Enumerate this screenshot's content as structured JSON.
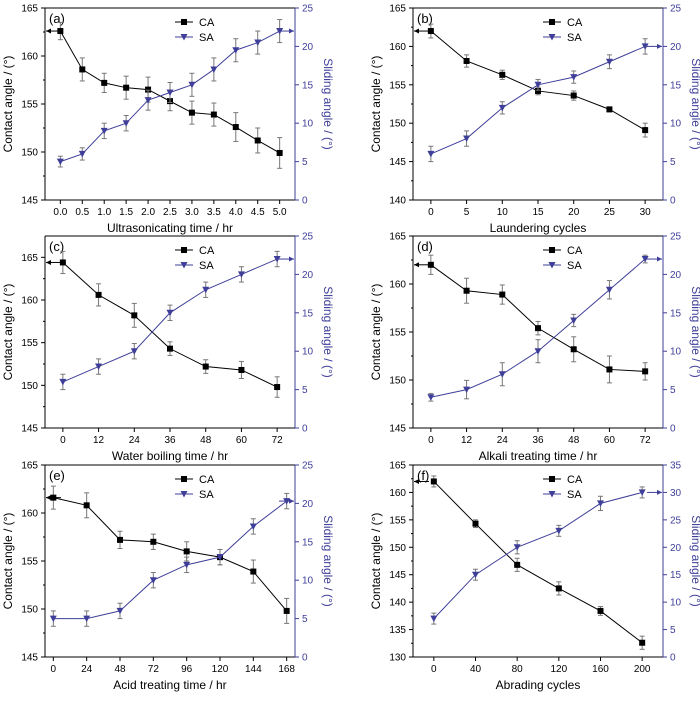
{
  "colors": {
    "ca": "#000000",
    "sa": "#3f3f9a",
    "axis": "#000000",
    "sa_axis": "#3f3f9a"
  },
  "chart_data": [
    {
      "panel": "(a)",
      "type": "line",
      "xlabel": "Ultrasonicating time / hr",
      "ylabel": "Contact angle / (°)",
      "y2label": "Sliding angle / (°)",
      "x": [
        0.0,
        0.5,
        1.0,
        1.5,
        2.0,
        2.5,
        3.0,
        3.5,
        4.0,
        4.5,
        5.0
      ],
      "xticks": [
        "0.0",
        "0.5",
        "1.0",
        "1.5",
        "2.0",
        "2.5",
        "3.0",
        "3.5",
        "4.0",
        "4.5",
        "5.0"
      ],
      "xlim": [
        -0.35,
        5.35
      ],
      "ylim": [
        145,
        165
      ],
      "yticks": [
        "145",
        "150",
        "155",
        "160",
        "165"
      ],
      "y2lim": [
        0,
        25
      ],
      "y2ticks": [
        "0",
        "5",
        "10",
        "15",
        "20",
        "25"
      ],
      "series": [
        {
          "name": "CA",
          "axis": "left",
          "marker": "square",
          "values": [
            162.6,
            158.6,
            157.2,
            156.7,
            156.5,
            155.3,
            154.1,
            153.9,
            152.6,
            151.2,
            149.9
          ],
          "err": [
            0.9,
            1.2,
            1.0,
            1.2,
            1.3,
            1.0,
            1.2,
            1.2,
            1.5,
            1.3,
            1.6
          ]
        },
        {
          "name": "SA",
          "axis": "right",
          "marker": "triangle-down",
          "values": [
            5,
            6,
            9,
            10,
            13,
            14,
            15,
            17,
            19.5,
            20.5,
            22
          ],
          "err": [
            0.7,
            0.8,
            1.0,
            1.0,
            1.3,
            1.3,
            1.5,
            1.5,
            1.5,
            1.5,
            1.5
          ]
        }
      ],
      "arrows": [
        {
          "side": "left",
          "at": 162.6
        },
        {
          "side": "right",
          "at": 22
        }
      ]
    },
    {
      "panel": "(b)",
      "type": "line",
      "xlabel": "Laundering cycles",
      "ylabel": "Contact angle / (°)",
      "y2label": "Sliding angle / (°)",
      "x": [
        0,
        5,
        10,
        15,
        20,
        25,
        30
      ],
      "xticks": [
        "0",
        "5",
        "10",
        "15",
        "20",
        "25",
        "30"
      ],
      "xlim": [
        -2.5,
        32.5
      ],
      "ylim": [
        140,
        165
      ],
      "yticks": [
        "140",
        "145",
        "150",
        "155",
        "160",
        "165"
      ],
      "y2lim": [
        0,
        25
      ],
      "y2ticks": [
        "0",
        "5",
        "10",
        "15",
        "20",
        "25"
      ],
      "series": [
        {
          "name": "CA",
          "axis": "left",
          "marker": "square",
          "values": [
            162.0,
            158.1,
            156.3,
            154.2,
            153.6,
            151.8,
            149.1
          ],
          "err": [
            0.9,
            0.8,
            0.6,
            0.5,
            0.6,
            0.3,
            0.9
          ]
        },
        {
          "name": "SA",
          "axis": "right",
          "marker": "triangle-down",
          "values": [
            6,
            8,
            12,
            15,
            16,
            18,
            20
          ],
          "err": [
            1.0,
            1.0,
            0.8,
            0.7,
            0.8,
            0.9,
            1.0
          ]
        }
      ],
      "arrows": [
        {
          "side": "left",
          "at": 162.0
        },
        {
          "side": "right",
          "at": 20
        }
      ]
    },
    {
      "panel": "(c)",
      "type": "line",
      "xlabel": "Water boiling  time / hr",
      "ylabel": "Contact angle / (°)",
      "y2label": "Sliding angle / (°)",
      "x": [
        0,
        12,
        24,
        36,
        48,
        60,
        72
      ],
      "xticks": [
        "0",
        "12",
        "24",
        "36",
        "48",
        "60",
        "72"
      ],
      "xlim": [
        -6,
        78
      ],
      "ylim": [
        145,
        167.5
      ],
      "yticks": [
        "145",
        "150",
        "155",
        "160",
        "165"
      ],
      "y2lim": [
        0,
        25
      ],
      "y2ticks": [
        "0",
        "5",
        "10",
        "15",
        "20",
        "25"
      ],
      "series": [
        {
          "name": "CA",
          "axis": "left",
          "marker": "square",
          "values": [
            164.4,
            160.6,
            158.2,
            154.3,
            152.2,
            151.8,
            149.8
          ],
          "err": [
            1.3,
            1.3,
            1.4,
            0.8,
            0.8,
            1.0,
            1.2
          ]
        },
        {
          "name": "SA",
          "axis": "right",
          "marker": "triangle-down",
          "values": [
            6,
            8,
            10,
            15,
            18,
            20,
            22
          ],
          "err": [
            1.0,
            1.0,
            1.0,
            1.0,
            1.0,
            1.0,
            1.0
          ]
        }
      ],
      "arrows": [
        {
          "side": "left",
          "at": 164.4
        },
        {
          "side": "right",
          "at": 22
        }
      ]
    },
    {
      "panel": "(d)",
      "type": "line",
      "xlabel": "Alkali treating time / hr",
      "ylabel": "Contact angle / (°)",
      "y2label": "Sliding angle / (°)",
      "x": [
        0,
        12,
        24,
        36,
        48,
        60,
        72
      ],
      "xticks": [
        "0",
        "12",
        "24",
        "36",
        "48",
        "60",
        "72"
      ],
      "xlim": [
        -6,
        78
      ],
      "ylim": [
        145,
        165
      ],
      "yticks": [
        "145",
        "150",
        "155",
        "160",
        "165"
      ],
      "y2lim": [
        0,
        25
      ],
      "y2ticks": [
        "0",
        "5",
        "10",
        "15",
        "20",
        "25"
      ],
      "series": [
        {
          "name": "CA",
          "axis": "left",
          "marker": "square",
          "values": [
            162.0,
            159.3,
            158.9,
            155.4,
            153.2,
            151.1,
            150.9
          ],
          "err": [
            1.0,
            1.3,
            1.0,
            0.7,
            1.3,
            1.4,
            0.9
          ]
        },
        {
          "name": "SA",
          "axis": "right",
          "marker": "triangle-down",
          "values": [
            4,
            5,
            7,
            10,
            14,
            18,
            22
          ],
          "err": [
            0.5,
            1.2,
            1.5,
            1.5,
            0.8,
            1.2,
            0.5
          ]
        }
      ],
      "arrows": [
        {
          "side": "left",
          "at": 162.0
        },
        {
          "side": "right",
          "at": 22
        }
      ]
    },
    {
      "panel": "(e)",
      "type": "line",
      "xlabel": "Acid treating time / hr",
      "ylabel": "Contact angle / (°)",
      "y2label": "Sliding angle / (°)",
      "x": [
        0,
        24,
        48,
        72,
        96,
        120,
        144,
        168
      ],
      "xticks": [
        "0",
        "24",
        "48",
        "72",
        "96",
        "120",
        "144",
        "168"
      ],
      "xlim": [
        -6,
        174
      ],
      "ylim": [
        145,
        165
      ],
      "yticks": [
        "145",
        "150",
        "155",
        "160",
        "165"
      ],
      "y2lim": [
        0,
        25
      ],
      "y2ticks": [
        "0",
        "5",
        "10",
        "15",
        "20",
        "25"
      ],
      "series": [
        {
          "name": "CA",
          "axis": "left",
          "marker": "square",
          "values": [
            161.6,
            160.8,
            157.2,
            157.0,
            156.0,
            155.4,
            153.9,
            149.8
          ],
          "err": [
            1.2,
            1.3,
            0.9,
            0.8,
            1.0,
            0.8,
            1.2,
            1.3
          ]
        },
        {
          "name": "SA",
          "axis": "right",
          "marker": "triangle-down",
          "values": [
            5,
            5,
            6,
            10,
            12,
            13,
            17,
            20.3
          ],
          "err": [
            1.0,
            1.0,
            1.0,
            1.0,
            1.0,
            1.0,
            1.0,
            1.0
          ]
        }
      ],
      "arrows": [
        {
          "side": "left",
          "at": 161.6
        },
        {
          "side": "right",
          "at": 20.3
        }
      ]
    },
    {
      "panel": "(f)",
      "type": "line",
      "xlabel": "Abrading cycles",
      "ylabel": "Contact angle / (°)",
      "y2label": "Sliding angle / (°)",
      "x": [
        0,
        40,
        80,
        120,
        160,
        200
      ],
      "xticks": [
        "0",
        "40",
        "80",
        "120",
        "160",
        "200"
      ],
      "xlim": [
        -20,
        220
      ],
      "ylim": [
        130,
        165
      ],
      "yticks": [
        "130",
        "135",
        "140",
        "145",
        "150",
        "155",
        "160",
        "165"
      ],
      "y2lim": [
        0,
        35
      ],
      "y2ticks": [
        "0",
        "5",
        "10",
        "15",
        "20",
        "25",
        "30",
        "35"
      ],
      "series": [
        {
          "name": "CA",
          "axis": "left",
          "marker": "square",
          "values": [
            162.0,
            154.3,
            146.8,
            142.5,
            138.4,
            132.6
          ],
          "err": [
            1.0,
            0.7,
            1.2,
            1.2,
            0.8,
            1.2
          ]
        },
        {
          "name": "SA",
          "axis": "right",
          "marker": "triangle-down",
          "values": [
            7,
            15,
            20,
            23,
            28,
            30
          ],
          "err": [
            1.0,
            1.0,
            1.2,
            1.0,
            1.3,
            1.0
          ]
        }
      ],
      "arrows": [
        {
          "side": "left",
          "at": 162.0
        },
        {
          "side": "right",
          "at": 30
        }
      ]
    }
  ]
}
